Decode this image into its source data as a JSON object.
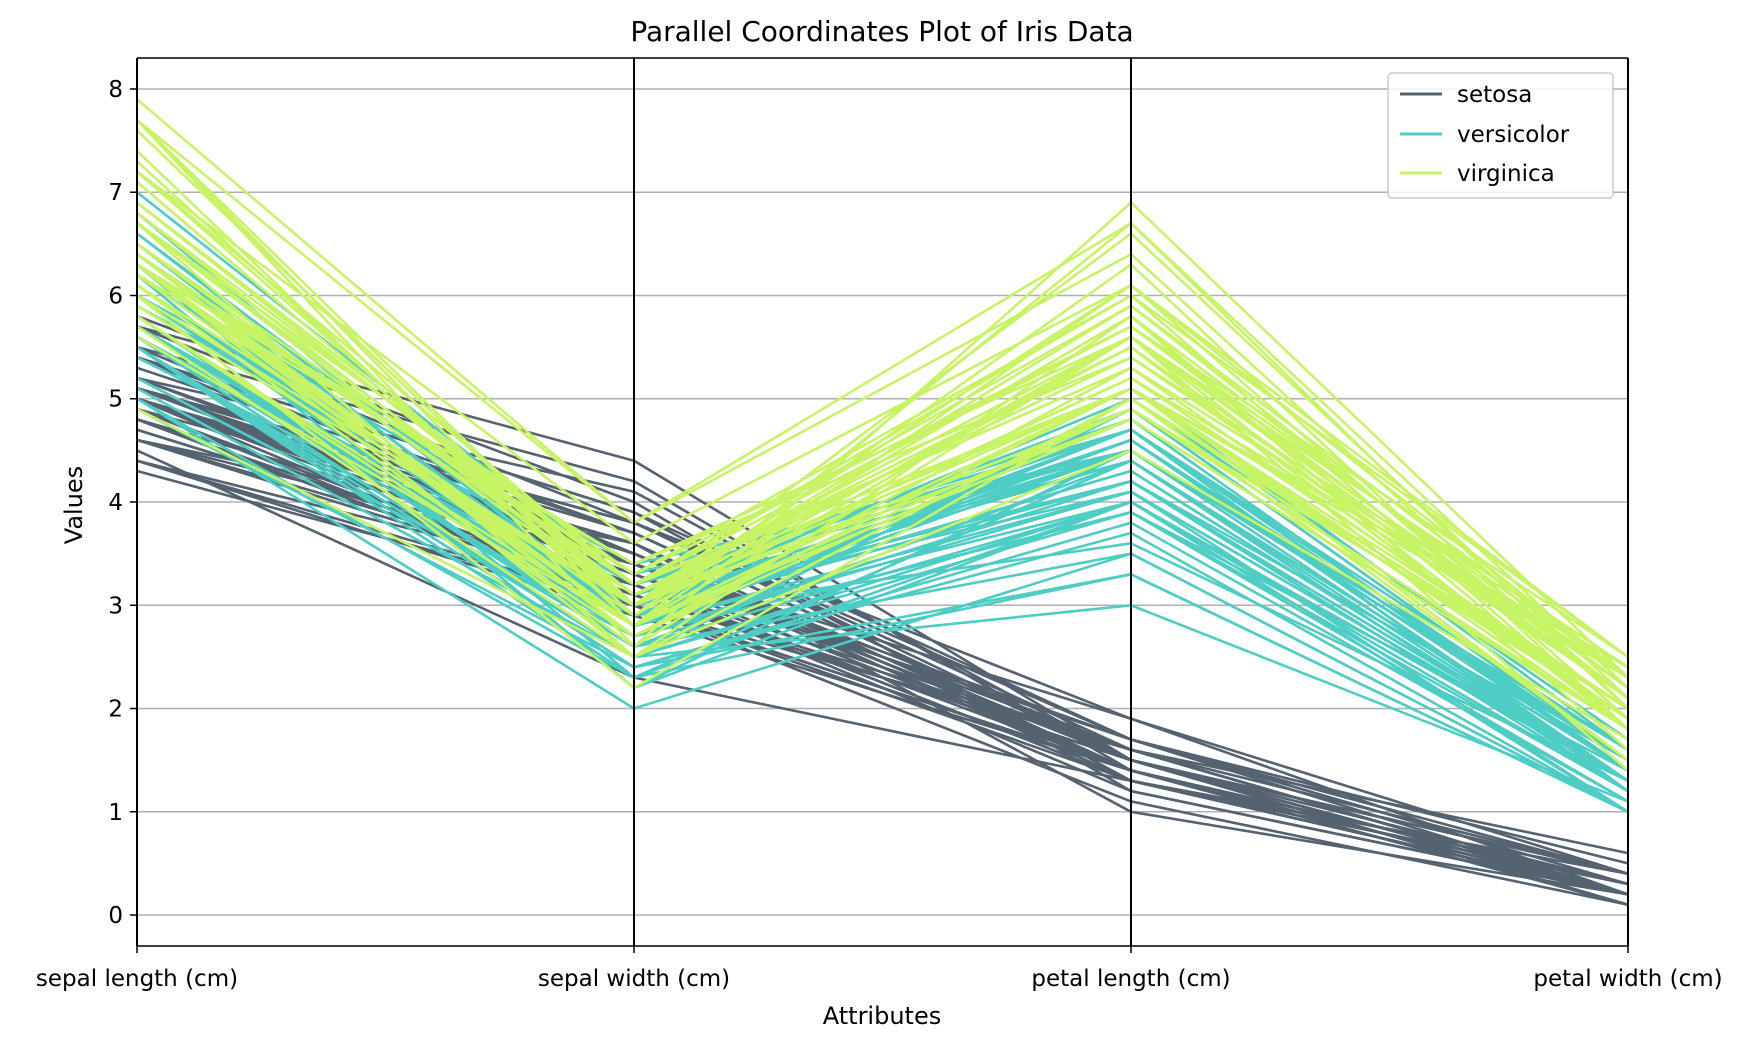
{
  "chart_data": {
    "type": "parallel_coordinates",
    "title": "Parallel Coordinates Plot of Iris Data",
    "xlabel": "Attributes",
    "ylabel": "Values",
    "ylim": [
      -0.3,
      8.3
    ],
    "yticks": [
      "0",
      "1",
      "2",
      "3",
      "4",
      "5",
      "6",
      "7",
      "8"
    ],
    "grid": "horizontal",
    "legend_position": "top-right",
    "dimensions": [
      "sepal length (cm)",
      "sepal width (cm)",
      "petal length (cm)",
      "petal width (cm)"
    ],
    "series": [
      {
        "name": "setosa",
        "color": "#556270",
        "rows": [
          [
            5.1,
            3.5,
            1.4,
            0.2
          ],
          [
            4.9,
            3.0,
            1.4,
            0.2
          ],
          [
            4.7,
            3.2,
            1.3,
            0.2
          ],
          [
            4.6,
            3.1,
            1.5,
            0.2
          ],
          [
            5.0,
            3.6,
            1.4,
            0.2
          ],
          [
            5.4,
            3.9,
            1.7,
            0.4
          ],
          [
            4.6,
            3.4,
            1.4,
            0.3
          ],
          [
            5.0,
            3.4,
            1.5,
            0.2
          ],
          [
            4.4,
            2.9,
            1.4,
            0.2
          ],
          [
            4.9,
            3.1,
            1.5,
            0.1
          ],
          [
            5.4,
            3.7,
            1.5,
            0.2
          ],
          [
            4.8,
            3.4,
            1.6,
            0.2
          ],
          [
            4.8,
            3.0,
            1.4,
            0.1
          ],
          [
            4.3,
            3.0,
            1.1,
            0.1
          ],
          [
            5.8,
            4.0,
            1.2,
            0.2
          ],
          [
            5.7,
            4.4,
            1.5,
            0.4
          ],
          [
            5.4,
            3.9,
            1.3,
            0.4
          ],
          [
            5.1,
            3.5,
            1.4,
            0.3
          ],
          [
            5.7,
            3.8,
            1.7,
            0.3
          ],
          [
            5.1,
            3.8,
            1.5,
            0.3
          ],
          [
            5.4,
            3.4,
            1.7,
            0.2
          ],
          [
            5.1,
            3.7,
            1.5,
            0.4
          ],
          [
            4.6,
            3.6,
            1.0,
            0.2
          ],
          [
            5.1,
            3.3,
            1.7,
            0.5
          ],
          [
            4.8,
            3.4,
            1.9,
            0.2
          ],
          [
            5.0,
            3.0,
            1.6,
            0.2
          ],
          [
            5.0,
            3.4,
            1.6,
            0.4
          ],
          [
            5.2,
            3.5,
            1.5,
            0.2
          ],
          [
            5.2,
            3.4,
            1.4,
            0.2
          ],
          [
            4.7,
            3.2,
            1.6,
            0.2
          ],
          [
            4.8,
            3.1,
            1.6,
            0.2
          ],
          [
            5.4,
            3.4,
            1.5,
            0.4
          ],
          [
            5.2,
            4.1,
            1.5,
            0.1
          ],
          [
            5.5,
            4.2,
            1.4,
            0.2
          ],
          [
            4.9,
            3.1,
            1.5,
            0.2
          ],
          [
            5.0,
            3.2,
            1.2,
            0.2
          ],
          [
            5.5,
            3.5,
            1.3,
            0.2
          ],
          [
            4.9,
            3.6,
            1.4,
            0.1
          ],
          [
            4.4,
            3.0,
            1.3,
            0.2
          ],
          [
            5.1,
            3.4,
            1.5,
            0.2
          ],
          [
            5.0,
            3.5,
            1.3,
            0.3
          ],
          [
            4.5,
            2.3,
            1.3,
            0.3
          ],
          [
            4.4,
            3.2,
            1.3,
            0.2
          ],
          [
            5.0,
            3.5,
            1.6,
            0.6
          ],
          [
            5.1,
            3.8,
            1.9,
            0.4
          ],
          [
            4.8,
            3.0,
            1.4,
            0.3
          ],
          [
            5.1,
            3.8,
            1.6,
            0.2
          ],
          [
            4.6,
            3.2,
            1.4,
            0.2
          ],
          [
            5.3,
            3.7,
            1.5,
            0.2
          ],
          [
            5.0,
            3.3,
            1.4,
            0.2
          ]
        ]
      },
      {
        "name": "versicolor",
        "color": "#4ECDC4",
        "rows": [
          [
            7.0,
            3.2,
            4.7,
            1.4
          ],
          [
            6.4,
            3.2,
            4.5,
            1.5
          ],
          [
            6.9,
            3.1,
            4.9,
            1.5
          ],
          [
            5.5,
            2.3,
            4.0,
            1.3
          ],
          [
            6.5,
            2.8,
            4.6,
            1.5
          ],
          [
            5.7,
            2.8,
            4.5,
            1.3
          ],
          [
            6.3,
            3.3,
            4.7,
            1.6
          ],
          [
            4.9,
            2.4,
            3.3,
            1.0
          ],
          [
            6.6,
            2.9,
            4.6,
            1.3
          ],
          [
            5.2,
            2.7,
            3.9,
            1.4
          ],
          [
            5.0,
            2.0,
            3.5,
            1.0
          ],
          [
            5.9,
            3.0,
            4.2,
            1.5
          ],
          [
            6.0,
            2.2,
            4.0,
            1.0
          ],
          [
            6.1,
            2.9,
            4.7,
            1.4
          ],
          [
            5.6,
            2.9,
            3.6,
            1.3
          ],
          [
            6.7,
            3.1,
            4.4,
            1.4
          ],
          [
            5.6,
            3.0,
            4.5,
            1.5
          ],
          [
            5.8,
            2.7,
            4.1,
            1.0
          ],
          [
            6.2,
            2.2,
            4.5,
            1.5
          ],
          [
            5.6,
            2.5,
            3.9,
            1.1
          ],
          [
            5.9,
            3.2,
            4.8,
            1.8
          ],
          [
            6.1,
            2.8,
            4.0,
            1.3
          ],
          [
            6.3,
            2.5,
            4.9,
            1.5
          ],
          [
            6.1,
            2.8,
            4.7,
            1.2
          ],
          [
            6.4,
            2.9,
            4.3,
            1.3
          ],
          [
            6.6,
            3.0,
            4.4,
            1.4
          ],
          [
            6.8,
            2.8,
            4.8,
            1.4
          ],
          [
            6.7,
            3.0,
            5.0,
            1.7
          ],
          [
            6.0,
            2.9,
            4.5,
            1.5
          ],
          [
            5.7,
            2.6,
            3.5,
            1.0
          ],
          [
            5.5,
            2.4,
            3.8,
            1.1
          ],
          [
            5.5,
            2.4,
            3.7,
            1.0
          ],
          [
            5.8,
            2.7,
            3.9,
            1.2
          ],
          [
            6.0,
            2.7,
            5.1,
            1.6
          ],
          [
            5.4,
            3.0,
            4.5,
            1.5
          ],
          [
            6.0,
            3.4,
            4.5,
            1.6
          ],
          [
            6.7,
            3.1,
            4.7,
            1.5
          ],
          [
            6.3,
            2.3,
            4.4,
            1.3
          ],
          [
            5.6,
            3.0,
            4.1,
            1.3
          ],
          [
            5.5,
            2.5,
            4.0,
            1.3
          ],
          [
            5.5,
            2.6,
            4.4,
            1.2
          ],
          [
            6.1,
            3.0,
            4.6,
            1.4
          ],
          [
            5.8,
            2.6,
            4.0,
            1.2
          ],
          [
            5.0,
            2.3,
            3.3,
            1.0
          ],
          [
            5.6,
            2.7,
            4.2,
            1.3
          ],
          [
            5.7,
            3.0,
            4.2,
            1.2
          ],
          [
            5.7,
            2.9,
            4.2,
            1.3
          ],
          [
            6.2,
            2.9,
            4.3,
            1.3
          ],
          [
            5.1,
            2.5,
            3.0,
            1.1
          ],
          [
            5.7,
            2.8,
            4.1,
            1.3
          ]
        ]
      },
      {
        "name": "virginica",
        "color": "#C7F464",
        "rows": [
          [
            6.3,
            3.3,
            6.0,
            2.5
          ],
          [
            5.8,
            2.7,
            5.1,
            1.9
          ],
          [
            7.1,
            3.0,
            5.9,
            2.1
          ],
          [
            6.3,
            2.9,
            5.6,
            1.8
          ],
          [
            6.5,
            3.0,
            5.8,
            2.2
          ],
          [
            7.6,
            3.0,
            6.6,
            2.1
          ],
          [
            4.9,
            2.5,
            4.5,
            1.7
          ],
          [
            7.3,
            2.9,
            6.3,
            1.8
          ],
          [
            6.7,
            2.5,
            5.8,
            1.8
          ],
          [
            7.2,
            3.6,
            6.1,
            2.5
          ],
          [
            6.5,
            3.2,
            5.1,
            2.0
          ],
          [
            6.4,
            2.7,
            5.3,
            1.9
          ],
          [
            6.8,
            3.0,
            5.5,
            2.1
          ],
          [
            5.7,
            2.5,
            5.0,
            2.0
          ],
          [
            5.8,
            2.8,
            5.1,
            2.4
          ],
          [
            6.4,
            3.2,
            5.3,
            2.3
          ],
          [
            6.5,
            3.0,
            5.5,
            1.8
          ],
          [
            7.7,
            3.8,
            6.7,
            2.2
          ],
          [
            7.7,
            2.6,
            6.9,
            2.3
          ],
          [
            6.0,
            2.2,
            5.0,
            1.5
          ],
          [
            6.9,
            3.2,
            5.7,
            2.3
          ],
          [
            5.6,
            2.8,
            4.9,
            2.0
          ],
          [
            7.7,
            2.8,
            6.7,
            2.0
          ],
          [
            6.3,
            2.7,
            4.9,
            1.8
          ],
          [
            6.7,
            3.3,
            5.7,
            2.1
          ],
          [
            7.2,
            3.2,
            6.0,
            1.8
          ],
          [
            6.2,
            2.8,
            4.8,
            1.8
          ],
          [
            6.1,
            3.0,
            4.9,
            1.8
          ],
          [
            6.4,
            2.8,
            5.6,
            2.1
          ],
          [
            7.2,
            3.0,
            5.8,
            1.6
          ],
          [
            7.4,
            2.8,
            6.1,
            1.9
          ],
          [
            7.9,
            3.8,
            6.4,
            2.0
          ],
          [
            6.4,
            2.8,
            5.6,
            2.2
          ],
          [
            6.3,
            2.8,
            5.1,
            1.5
          ],
          [
            6.1,
            2.6,
            5.6,
            1.4
          ],
          [
            7.7,
            3.0,
            6.1,
            2.3
          ],
          [
            6.3,
            3.4,
            5.6,
            2.4
          ],
          [
            6.4,
            3.1,
            5.5,
            1.8
          ],
          [
            6.0,
            3.0,
            4.8,
            1.8
          ],
          [
            6.9,
            3.1,
            5.4,
            2.1
          ],
          [
            6.7,
            3.1,
            5.6,
            2.4
          ],
          [
            6.9,
            3.1,
            5.1,
            2.3
          ],
          [
            5.8,
            2.7,
            5.1,
            1.9
          ],
          [
            6.8,
            3.2,
            5.9,
            2.3
          ],
          [
            6.7,
            3.3,
            5.7,
            2.5
          ],
          [
            6.7,
            3.0,
            5.2,
            2.3
          ],
          [
            6.3,
            2.5,
            5.0,
            1.9
          ],
          [
            6.5,
            3.0,
            5.2,
            2.0
          ],
          [
            6.2,
            3.4,
            5.4,
            2.3
          ],
          [
            5.9,
            3.0,
            5.1,
            1.8
          ]
        ]
      }
    ]
  }
}
